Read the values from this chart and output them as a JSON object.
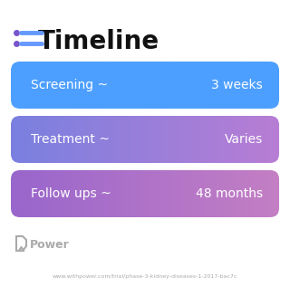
{
  "title": "Timeline",
  "title_fontsize": 20,
  "title_fontweight": "bold",
  "title_color": "#111111",
  "background_color": "#ffffff",
  "rows": [
    {
      "label": "Screening ~",
      "value": "3 weeks",
      "color_left": "#4d9fff",
      "color_right": "#4d9fff"
    },
    {
      "label": "Treatment ~",
      "value": "Varies",
      "color_left": "#7a80e0",
      "color_right": "#b87dd4"
    },
    {
      "label": "Follow ups ~",
      "value": "48 months",
      "color_left": "#9966cc",
      "color_right": "#c47fc4"
    }
  ],
  "icon_color": "#7755cc",
  "icon_line_color": "#6699ff",
  "power_text": "Power",
  "power_color": "#aaaaaa",
  "url_text": "www.withpower.com/trial/phase-3-kidney-diseases-1-2017-bac7c",
  "url_color": "#aaaaaa",
  "label_fontsize": 10,
  "value_fontsize": 10,
  "fig_width": 3.2,
  "fig_height": 3.27,
  "dpi": 100
}
